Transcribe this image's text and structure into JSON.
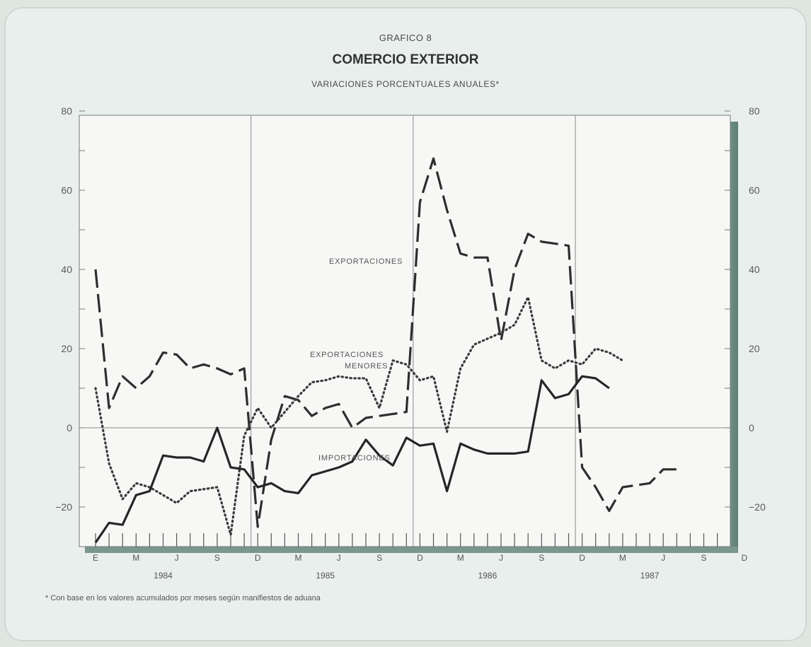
{
  "header": {
    "supertitle": "GRAFICO 8",
    "title": "COMERCIO EXTERIOR",
    "subtitle": "VARIACIONES PORCENTUALES ANUALES*"
  },
  "footnote": "* Con base en los valores acumulados por meses según manifiestos de aduana",
  "chart_data": {
    "type": "line",
    "title": "COMERCIO EXTERIOR",
    "subtitle": "VARIACIONES PORCENTUALES ANUALES*",
    "ylim": [
      -30,
      80
    ],
    "yticks": [
      -20,
      0,
      20,
      40,
      60,
      80
    ],
    "grid": false,
    "x_month_labels": [
      "E",
      "M",
      "J",
      "S",
      "D",
      "M",
      "J",
      "S",
      "D",
      "M",
      "J",
      "S",
      "D",
      "M",
      "J",
      "S",
      "D"
    ],
    "x_year_labels": [
      "1984",
      "1985",
      "1986",
      "1987"
    ],
    "x_index_note": "x = month index, 0 = enero 1984",
    "series": [
      {
        "name": "EXPORTACIONES",
        "style": "dashed",
        "x": [
          0,
          1,
          2,
          3,
          4,
          5,
          6,
          7,
          8,
          9,
          10,
          11,
          12,
          13,
          14,
          15,
          16,
          17,
          18,
          19,
          20,
          21,
          22,
          23,
          24,
          25,
          26,
          27,
          28,
          29,
          30,
          31,
          32,
          33,
          34,
          35,
          36,
          37,
          38,
          39,
          40,
          41,
          42,
          43,
          44
        ],
        "y": [
          40,
          5,
          13,
          10,
          13,
          19,
          18.5,
          15,
          16,
          15,
          13.5,
          15,
          -25,
          -3,
          8,
          7,
          3,
          5,
          6,
          0,
          2.5,
          3,
          3.5,
          4,
          57,
          68,
          55,
          44,
          43,
          43,
          22,
          40,
          49,
          47,
          46.5,
          46,
          -10,
          -15,
          -21,
          -15,
          -14.5,
          -14,
          -10.5,
          -10.5,
          null
        ],
        "color": "#2e2e2e"
      },
      {
        "name": "EXPORTACIONES MENORES",
        "style": "dotted",
        "x": [
          0,
          1,
          2,
          3,
          4,
          5,
          6,
          7,
          8,
          9,
          10,
          11,
          12,
          13,
          14,
          15,
          16,
          17,
          18,
          19,
          20,
          21,
          22,
          23,
          24,
          25,
          26,
          27,
          28,
          29,
          30,
          31,
          32,
          33,
          34,
          35,
          36,
          37,
          38,
          39,
          40,
          41,
          42,
          43,
          44
        ],
        "y": [
          10,
          -9,
          -18,
          -14,
          -15,
          -17,
          -19,
          -16,
          -15.5,
          -15,
          -27,
          -2,
          5,
          0,
          4,
          8,
          11.5,
          12,
          13,
          12.5,
          12.5,
          5,
          17,
          16,
          12,
          13,
          -1,
          15,
          21,
          22.5,
          24,
          26,
          33,
          17,
          15,
          17,
          16,
          20,
          19,
          17,
          null,
          null,
          null,
          null,
          null
        ],
        "color": "#3a3a3a"
      },
      {
        "name": "IMPORTACIONES",
        "style": "solid",
        "x": [
          0,
          1,
          2,
          3,
          4,
          5,
          6,
          7,
          8,
          9,
          10,
          11,
          12,
          13,
          14,
          15,
          16,
          17,
          18,
          19,
          20,
          21,
          22,
          23,
          24,
          25,
          26,
          27,
          28,
          29,
          30,
          31,
          32,
          33,
          34,
          35,
          36,
          37,
          38,
          39,
          40,
          41,
          42,
          43,
          44
        ],
        "y": [
          -29,
          -24,
          -24.5,
          -17,
          -16,
          -7,
          -7.5,
          -7.5,
          -8.5,
          0,
          -10,
          -10.5,
          -15,
          -14,
          -16,
          -16.5,
          -12,
          -11,
          -10,
          -8.5,
          -3,
          -7,
          -9.5,
          -2.5,
          -4.5,
          -4,
          -16,
          -4,
          -5.5,
          -6.5,
          -6.5,
          -6.5,
          -6,
          12,
          7.5,
          8.5,
          13,
          12.5,
          10,
          null,
          null,
          null,
          null,
          null,
          null
        ],
        "color": "#262626"
      }
    ],
    "annotations": [
      {
        "text": "EXPORTACIONES",
        "series": "EXPORTACIONES"
      },
      {
        "text": "EXPORTACIONES",
        "series": "EXPORTACIONES MENORES"
      },
      {
        "text": "MENORES",
        "series": "EXPORTACIONES MENORES"
      },
      {
        "text": "IMPORTACIONES",
        "series": "IMPORTACIONES"
      }
    ]
  }
}
